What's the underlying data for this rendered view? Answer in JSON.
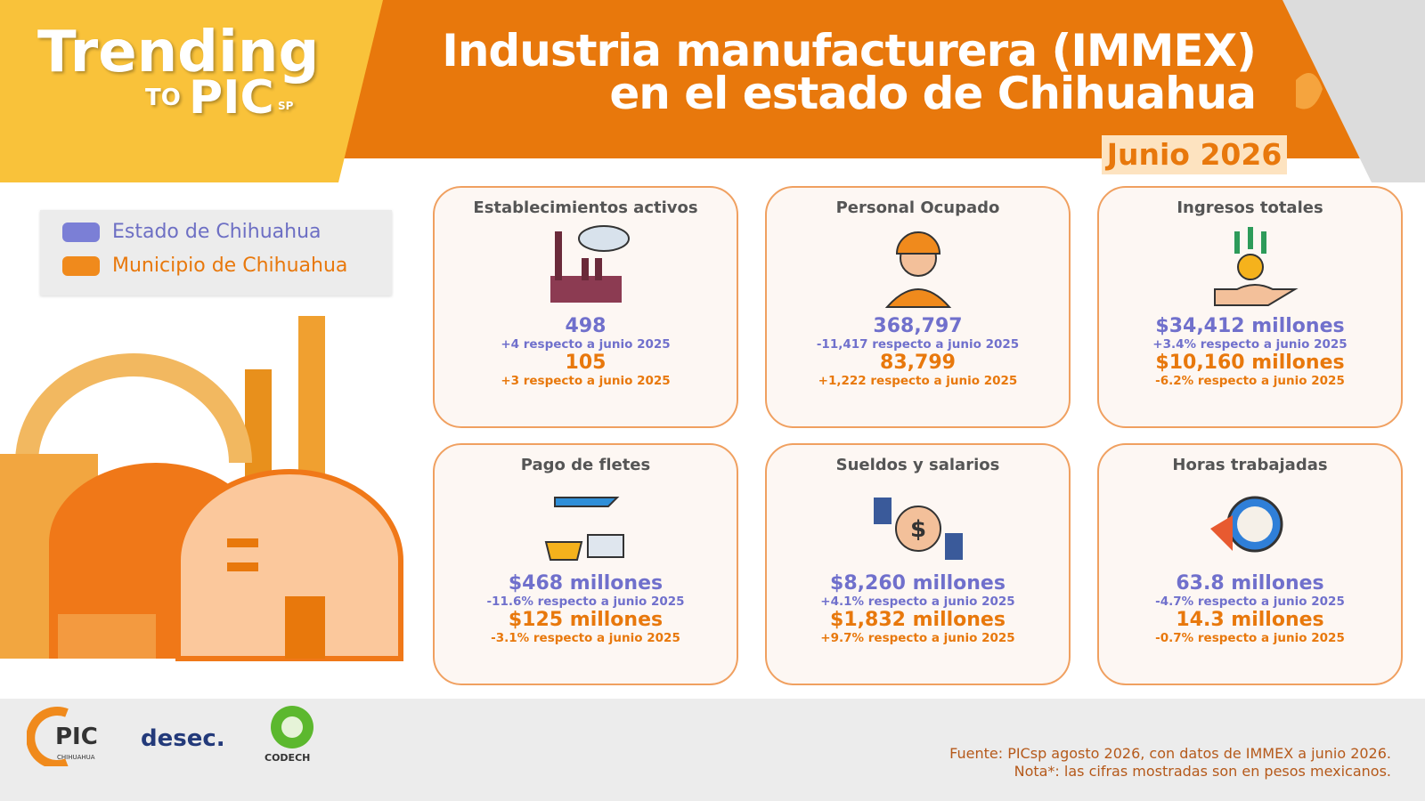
{
  "header": {
    "brand": {
      "trending": "Trending",
      "to": "TO",
      "pic": "PIC",
      "sp": "SP"
    },
    "title_line1": "Industria manufacturera (IMMEX)",
    "title_line2": "en el estado de Chihuahua",
    "period": "Junio 2026"
  },
  "legend": {
    "items": [
      "Estado de Chihuahua",
      "Municipio de Chihuahua"
    ]
  },
  "cards": [
    {
      "title": "Establecimientos activos",
      "state_value": "498",
      "state_change": "+4 respecto a junio 2025",
      "municipal_value": "105",
      "municipal_change": "+3 respecto a junio 2025"
    },
    {
      "title": "Personal Ocupado",
      "state_value": "368,797",
      "state_change": "-11,417 respecto a junio 2025",
      "municipal_value": "83,799",
      "municipal_change": "+1,222 respecto a junio 2025"
    },
    {
      "title": "Ingresos totales",
      "state_value": "$34,412 millones",
      "state_change": "+3.4%  respecto a junio 2025",
      "municipal_value": "$10,160 millones",
      "municipal_change": "-6.2%  respecto a junio 2025"
    },
    {
      "title": "Pago de fletes",
      "state_value": "$468 millones",
      "state_change": "-11.6% respecto a junio 2025",
      "municipal_value": "$125 millones",
      "municipal_change": "-3.1% respecto a junio 2025"
    },
    {
      "title": "Sueldos y salarios",
      "state_value": "$8,260 millones",
      "state_change": "+4.1% respecto a junio 2025",
      "municipal_value": "$1,832 millones",
      "municipal_change": "+9.7% respecto a junio 2025"
    },
    {
      "title": "Horas trabajadas",
      "state_value": "63.8 millones",
      "state_change": "-4.7% respecto a junio 2025",
      "municipal_value": "14.3 millones",
      "municipal_change": "-0.7% respecto a junio 2025"
    }
  ],
  "footer": {
    "logos": {
      "pic": "PIC",
      "pic_sub": "CHIHUAHUA",
      "desec": "desec.",
      "codech": "CODECH"
    },
    "source": "Fuente:  PICsp agosto 2026, con datos de IMMEX a junio 2026.",
    "note": "Nota*: las cifras mostradas son en pesos mexicanos."
  }
}
